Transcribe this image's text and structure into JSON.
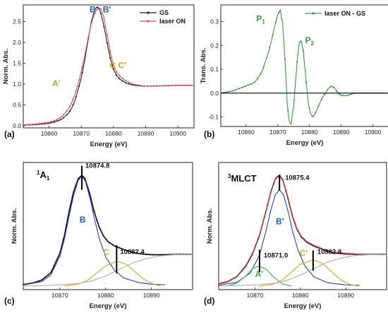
{
  "chart_data": [
    {
      "panel": "(a)",
      "type": "line",
      "xlabel": "Energy (eV)",
      "ylabel": "Norm. Abs.",
      "xlim": [
        10852,
        10905
      ],
      "ylim": [
        -0.05,
        2.9
      ],
      "xticks": [
        10860,
        10870,
        10880,
        10890,
        10900
      ],
      "xtick_labels": [
        "10860",
        "10870",
        "10880",
        "10890",
        "10900"
      ],
      "yticks": [
        0.0,
        0.5,
        1.0,
        1.5,
        2.0,
        2.5
      ],
      "ytick_labels": [
        "0.0",
        "0.5",
        "1.0",
        "1.5",
        "2.0",
        "2.5"
      ],
      "legend": "top-right",
      "series": [
        {
          "name": "GS",
          "color": "#222222",
          "x": [
            10852,
            10856,
            10860,
            10862,
            10864,
            10866,
            10867,
            10868,
            10869,
            10870,
            10871,
            10872,
            10873,
            10874,
            10874.8,
            10875.4,
            10876,
            10877,
            10878,
            10879,
            10880,
            10881,
            10882,
            10883,
            10884,
            10886,
            10888,
            10890,
            10895,
            10900,
            10905
          ],
          "y": [
            0.02,
            0.03,
            0.06,
            0.1,
            0.16,
            0.3,
            0.42,
            0.6,
            0.85,
            1.15,
            1.55,
            2.0,
            2.45,
            2.75,
            2.85,
            2.83,
            2.72,
            2.4,
            2.0,
            1.62,
            1.35,
            1.2,
            1.12,
            1.07,
            1.02,
            0.98,
            0.96,
            0.95,
            0.96,
            0.97,
            0.97
          ]
        },
        {
          "name": "laser ON",
          "color": "#d9534f",
          "x": [
            10852,
            10856,
            10860,
            10862,
            10864,
            10866,
            10867,
            10868,
            10869,
            10870,
            10871,
            10872,
            10873,
            10874,
            10875,
            10875.6,
            10876.2,
            10877,
            10878,
            10879,
            10880,
            10881,
            10882,
            10883,
            10884,
            10886,
            10888,
            10890,
            10895,
            10900,
            10905
          ],
          "y": [
            0.02,
            0.04,
            0.08,
            0.13,
            0.22,
            0.4,
            0.55,
            0.75,
            1.0,
            1.3,
            1.65,
            2.05,
            2.42,
            2.68,
            2.8,
            2.83,
            2.8,
            2.6,
            2.2,
            1.78,
            1.45,
            1.28,
            1.19,
            1.13,
            1.07,
            1.0,
            0.97,
            0.95,
            0.96,
            0.97,
            0.97
          ]
        }
      ],
      "annotations": [
        {
          "text": "B",
          "color": "#1f5fbf"
        },
        {
          "text": "B′",
          "color": "#1f5fbf"
        },
        {
          "text": "A′",
          "color": "#7cc42a"
        },
        {
          "text": "C C′",
          "color": "#e0a020"
        }
      ]
    },
    {
      "panel": "(b)",
      "type": "line",
      "xlabel": "Energy (eV)",
      "ylabel": "Trans. Abs.",
      "xlim": [
        10852,
        10905
      ],
      "ylim": [
        -0.14,
        0.37
      ],
      "xticks": [
        10860,
        10870,
        10880,
        10890,
        10900
      ],
      "xtick_labels": [
        "10860",
        "10870",
        "10880",
        "10890",
        "10900"
      ],
      "yticks": [
        -0.1,
        0.0,
        0.1,
        0.2,
        0.3
      ],
      "ytick_labels": [
        "-0.1",
        "0.0",
        "0.1",
        "0.2",
        "0.3"
      ],
      "legend": "top-right",
      "series": [
        {
          "name": "laser ON - GS",
          "color": "#3a9a3a",
          "x": [
            10852,
            10854,
            10856,
            10858,
            10860,
            10862,
            10863,
            10864,
            10865,
            10866,
            10867,
            10868,
            10869,
            10870,
            10870.8,
            10871.5,
            10872,
            10872.5,
            10873,
            10873.6,
            10874.2,
            10875,
            10875.6,
            10876.2,
            10876.8,
            10877.4,
            10878,
            10878.8,
            10879.6,
            10880.4,
            10881.2,
            10882,
            10883,
            10884,
            10885,
            10886,
            10887,
            10888,
            10889,
            10890,
            10892,
            10894,
            10896,
            10898,
            10900,
            10902,
            10905
          ],
          "y": [
            0.0,
            0.005,
            0.01,
            0.02,
            0.03,
            0.04,
            0.05,
            0.07,
            0.09,
            0.13,
            0.17,
            0.22,
            0.28,
            0.33,
            0.35,
            0.29,
            0.2,
            0.08,
            -0.05,
            -0.12,
            -0.13,
            -0.05,
            0.05,
            0.15,
            0.21,
            0.22,
            0.18,
            0.07,
            -0.04,
            -0.09,
            -0.1,
            -0.08,
            -0.05,
            -0.02,
            0.0,
            0.02,
            0.03,
            0.02,
            0.0,
            -0.01,
            -0.01,
            0.0,
            0.0,
            0.0,
            0.0,
            0.0,
            0.0
          ]
        },
        {
          "name": "",
          "color": "#000000",
          "x": [
            10852,
            10905
          ],
          "y": [
            0.0,
            0.0
          ]
        }
      ],
      "annotations": [
        {
          "text": "P",
          "sub": "1",
          "color": "#3a9a3a"
        },
        {
          "text": "P",
          "sub": "2",
          "color": "#3a9a3a"
        }
      ]
    },
    {
      "panel": "(c)",
      "type": "line",
      "xlabel": "Energy (eV)",
      "ylabel": "Norm. Abs.",
      "xlim": [
        10862,
        10899
      ],
      "ylim": [
        -0.1,
        3.4
      ],
      "xticks": [
        10870,
        10880,
        10890
      ],
      "xtick_labels": [
        "10870",
        "10880",
        "10890"
      ],
      "title_main": "A",
      "title_sup": "1",
      "title_sub": "1",
      "series": [
        {
          "name": "",
          "color": "#111111",
          "x": [
            10862,
            10864,
            10866,
            10868,
            10870,
            10871,
            10872,
            10873,
            10874,
            10874.8,
            10875.5,
            10876.5,
            10877.5,
            10878.5,
            10879.5,
            10880.5,
            10882,
            10884,
            10886,
            10888,
            10890,
            10893,
            10896,
            10899
          ],
          "y": [
            0.04,
            0.08,
            0.16,
            0.36,
            0.9,
            1.4,
            2.05,
            2.6,
            2.95,
            3.05,
            2.95,
            2.55,
            2.05,
            1.65,
            1.38,
            1.22,
            1.1,
            1.0,
            0.92,
            0.88,
            0.86,
            0.86,
            0.87,
            0.87
          ]
        },
        {
          "name": "",
          "color": "#2a3fd0",
          "x": [
            10862,
            10866,
            10868,
            10870,
            10871,
            10872,
            10873,
            10874,
            10874.8,
            10875.6,
            10876.6,
            10877.6,
            10878.6,
            10880,
            10882,
            10884,
            10887,
            10890,
            10893
          ],
          "y": [
            0.03,
            0.12,
            0.3,
            0.82,
            1.3,
            1.92,
            2.5,
            2.9,
            3.03,
            2.88,
            2.4,
            1.82,
            1.32,
            0.8,
            0.42,
            0.22,
            0.1,
            0.05,
            0.03
          ]
        },
        {
          "name": "",
          "color": "#e0a020",
          "x": [
            10871,
            10874,
            10876,
            10878,
            10880,
            10882.4,
            10884.5,
            10886.5,
            10888.5,
            10890.5,
            10892
          ],
          "y": [
            0.0,
            0.05,
            0.15,
            0.35,
            0.55,
            0.68,
            0.6,
            0.38,
            0.17,
            0.05,
            0.0
          ]
        },
        {
          "name": "",
          "color": "#b0b0b0",
          "x": [
            10862,
            10866,
            10870,
            10874,
            10877,
            10880,
            10883,
            10886,
            10889,
            10892,
            10895,
            10899
          ],
          "y": [
            0.0,
            0.01,
            0.03,
            0.07,
            0.14,
            0.28,
            0.46,
            0.64,
            0.76,
            0.83,
            0.86,
            0.87
          ]
        }
      ],
      "markers": [
        {
          "x": 10874.8,
          "label": "10874.8"
        },
        {
          "x": 10882.4,
          "label": "10882.4"
        }
      ],
      "annotations": [
        {
          "text": "B",
          "color": "#1f5fbf"
        },
        {
          "text": "C",
          "color": "#e0a020"
        }
      ]
    },
    {
      "panel": "(d)",
      "type": "line",
      "xlabel": "Energy (eV)",
      "ylabel": "Norm. Abs.",
      "xlim": [
        10862,
        10899
      ],
      "ylim": [
        -0.1,
        3.4
      ],
      "xticks": [
        10870,
        10880,
        10890
      ],
      "xtick_labels": [
        "10870",
        "10880",
        "10890"
      ],
      "title_main": "MLCT",
      "title_sup": "3",
      "series": [
        {
          "name": "",
          "color": "#111111",
          "x": [
            10862,
            10864,
            10866,
            10868,
            10869.5,
            10871,
            10872.5,
            10873.5,
            10874.5,
            10875.4,
            10876.2,
            10877.2,
            10878.2,
            10879.2,
            10880.2,
            10881.5,
            10883,
            10885,
            10887,
            10890,
            10893,
            10896,
            10899
          ],
          "y": [
            0.06,
            0.12,
            0.26,
            0.55,
            0.9,
            1.4,
            2.1,
            2.6,
            2.95,
            3.05,
            2.9,
            2.45,
            1.95,
            1.58,
            1.35,
            1.2,
            1.1,
            1.0,
            0.92,
            0.88,
            0.87,
            0.87,
            0.87
          ]
        },
        {
          "name": "",
          "color": "#d9534f",
          "x": [
            10862,
            10864,
            10866,
            10868,
            10869.5,
            10871,
            10872.5,
            10873.5,
            10874.5,
            10875.4,
            10876.2,
            10877.2,
            10878.2,
            10879.2,
            10880.2,
            10881.5,
            10883,
            10885,
            10887,
            10890,
            10893,
            10896,
            10899
          ],
          "y": [
            0.07,
            0.13,
            0.27,
            0.57,
            0.92,
            1.42,
            2.12,
            2.62,
            2.97,
            3.07,
            2.92,
            2.47,
            1.97,
            1.6,
            1.37,
            1.22,
            1.12,
            1.02,
            0.94,
            0.9,
            0.88,
            0.88,
            0.88
          ]
        },
        {
          "name": "",
          "color": "#2a3fd0",
          "x": [
            10862,
            10866,
            10869,
            10871,
            10872.5,
            10873.5,
            10874.5,
            10875.4,
            10876.3,
            10877.3,
            10878.3,
            10879.5,
            10881,
            10883,
            10886,
            10890,
            10893
          ],
          "y": [
            0.02,
            0.1,
            0.36,
            0.85,
            1.55,
            2.1,
            2.52,
            2.65,
            2.5,
            2.05,
            1.5,
            0.98,
            0.55,
            0.25,
            0.09,
            0.03,
            0.02
          ]
        },
        {
          "name": "",
          "color": "#38b040",
          "x": [
            10864,
            10866,
            10868,
            10869.5,
            10871.0,
            10872.5,
            10874,
            10876,
            10878
          ],
          "y": [
            0.0,
            0.08,
            0.28,
            0.48,
            0.55,
            0.46,
            0.26,
            0.06,
            0.0
          ]
        },
        {
          "name": "",
          "color": "#e0a020",
          "x": [
            10871,
            10874,
            10876,
            10878,
            10880,
            10882.8,
            10885,
            10887,
            10889,
            10891,
            10893
          ],
          "y": [
            0.0,
            0.05,
            0.16,
            0.38,
            0.6,
            0.72,
            0.62,
            0.38,
            0.16,
            0.04,
            0.0
          ]
        },
        {
          "name": "",
          "color": "#b0b0b0",
          "x": [
            10862,
            10866,
            10870,
            10874,
            10877,
            10880,
            10883,
            10886,
            10889,
            10892,
            10895,
            10899
          ],
          "y": [
            0.0,
            0.01,
            0.03,
            0.07,
            0.15,
            0.3,
            0.48,
            0.66,
            0.77,
            0.84,
            0.86,
            0.87
          ]
        }
      ],
      "markers": [
        {
          "x": 10875.4,
          "label": "10875.4"
        },
        {
          "x": 10871.0,
          "label": "10871.0"
        },
        {
          "x": 10882.8,
          "label": "10882.8"
        }
      ],
      "annotations": [
        {
          "text": "B′",
          "color": "#1f5fbf"
        },
        {
          "text": "A′",
          "color": "#38b040"
        },
        {
          "text": "C′",
          "color": "#e0a020"
        }
      ]
    }
  ]
}
